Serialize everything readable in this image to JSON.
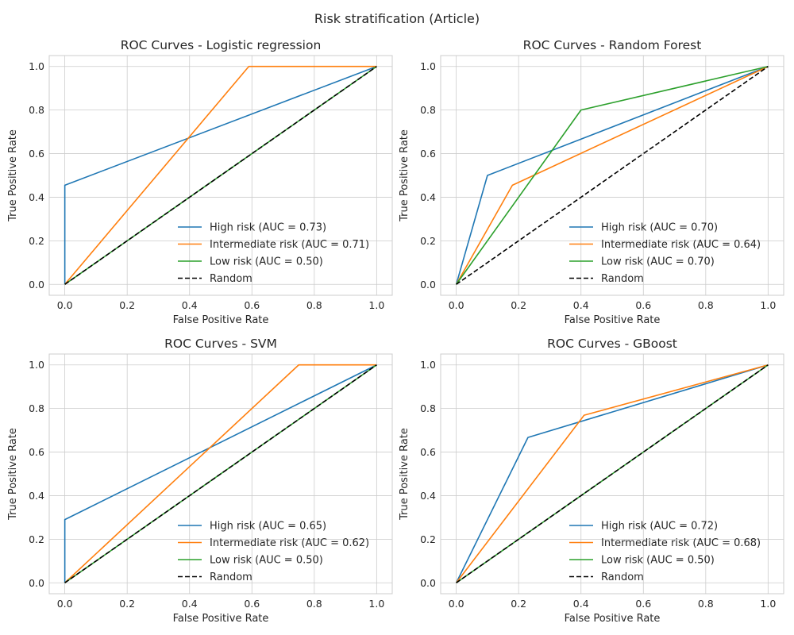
{
  "figure": {
    "suptitle": "Risk stratification (Article)"
  },
  "colors": {
    "high": "#1f77b4",
    "intermediate": "#ff7f0e",
    "low": "#2ca02c",
    "random": "#000000",
    "grid": "#cccccc"
  },
  "chart_data": [
    {
      "type": "line",
      "title": "ROC Curves - Logistic regression",
      "xlabel": "False Positive Rate",
      "ylabel": "True Positive Rate",
      "xlim": [
        -0.05,
        1.05
      ],
      "ylim": [
        -0.05,
        1.05
      ],
      "xticks": [
        "0.0",
        "0.2",
        "0.4",
        "0.6",
        "0.8",
        "1.0"
      ],
      "yticks": [
        "0.0",
        "0.2",
        "0.4",
        "0.6",
        "0.8",
        "1.0"
      ],
      "grid": true,
      "legend_position": "lower-right",
      "series": [
        {
          "name": "High risk (AUC = 0.73)",
          "color": "#1f77b4",
          "style": "solid",
          "x": [
            0,
            0,
            1
          ],
          "y": [
            0,
            0.455,
            1
          ]
        },
        {
          "name": "Intermediate risk (AUC = 0.71)",
          "color": "#ff7f0e",
          "style": "solid",
          "x": [
            0,
            0.59,
            1
          ],
          "y": [
            0,
            1,
            1
          ]
        },
        {
          "name": "Low risk (AUC = 0.50)",
          "color": "#2ca02c",
          "style": "solid",
          "x": [
            0,
            1
          ],
          "y": [
            0,
            1
          ]
        },
        {
          "name": "Random",
          "color": "#000000",
          "style": "dashed",
          "x": [
            0,
            1
          ],
          "y": [
            0,
            1
          ]
        }
      ]
    },
    {
      "type": "line",
      "title": "ROC Curves - Random Forest",
      "xlabel": "False Positive Rate",
      "ylabel": "True Positive Rate",
      "xlim": [
        -0.05,
        1.05
      ],
      "ylim": [
        -0.05,
        1.05
      ],
      "xticks": [
        "0.0",
        "0.2",
        "0.4",
        "0.6",
        "0.8",
        "1.0"
      ],
      "yticks": [
        "0.0",
        "0.2",
        "0.4",
        "0.6",
        "0.8",
        "1.0"
      ],
      "grid": true,
      "legend_position": "lower-right",
      "series": [
        {
          "name": "High risk (AUC = 0.70)",
          "color": "#1f77b4",
          "style": "solid",
          "x": [
            0,
            0.1,
            1
          ],
          "y": [
            0,
            0.5,
            1
          ]
        },
        {
          "name": "Intermediate risk (AUC = 0.64)",
          "color": "#ff7f0e",
          "style": "solid",
          "x": [
            0,
            0.18,
            1
          ],
          "y": [
            0,
            0.455,
            1
          ]
        },
        {
          "name": "Low risk (AUC = 0.70)",
          "color": "#2ca02c",
          "style": "solid",
          "x": [
            0,
            0.4,
            1
          ],
          "y": [
            0,
            0.8,
            1
          ]
        },
        {
          "name": "Random",
          "color": "#000000",
          "style": "dashed",
          "x": [
            0,
            1
          ],
          "y": [
            0,
            1
          ]
        }
      ]
    },
    {
      "type": "line",
      "title": "ROC Curves - SVM",
      "xlabel": "False Positive Rate",
      "ylabel": "True Positive Rate",
      "xlim": [
        -0.05,
        1.05
      ],
      "ylim": [
        -0.05,
        1.05
      ],
      "xticks": [
        "0.0",
        "0.2",
        "0.4",
        "0.6",
        "0.8",
        "1.0"
      ],
      "yticks": [
        "0.0",
        "0.2",
        "0.4",
        "0.6",
        "0.8",
        "1.0"
      ],
      "grid": true,
      "legend_position": "lower-right",
      "series": [
        {
          "name": "High risk (AUC = 0.65)",
          "color": "#1f77b4",
          "style": "solid",
          "x": [
            0,
            0,
            1
          ],
          "y": [
            0,
            0.29,
            1
          ]
        },
        {
          "name": "Intermediate risk (AUC = 0.62)",
          "color": "#ff7f0e",
          "style": "solid",
          "x": [
            0,
            0.75,
            1
          ],
          "y": [
            0,
            1,
            1
          ]
        },
        {
          "name": "Low risk (AUC = 0.50)",
          "color": "#2ca02c",
          "style": "solid",
          "x": [
            0,
            1
          ],
          "y": [
            0,
            1
          ]
        },
        {
          "name": "Random",
          "color": "#000000",
          "style": "dashed",
          "x": [
            0,
            1
          ],
          "y": [
            0,
            1
          ]
        }
      ]
    },
    {
      "type": "line",
      "title": "ROC Curves - GBoost",
      "xlabel": "False Positive Rate",
      "ylabel": "True Positive Rate",
      "xlim": [
        -0.05,
        1.05
      ],
      "ylim": [
        -0.05,
        1.05
      ],
      "xticks": [
        "0.0",
        "0.2",
        "0.4",
        "0.6",
        "0.8",
        "1.0"
      ],
      "yticks": [
        "0.0",
        "0.2",
        "0.4",
        "0.6",
        "0.8",
        "1.0"
      ],
      "grid": true,
      "legend_position": "lower-right",
      "series": [
        {
          "name": "High risk (AUC = 0.72)",
          "color": "#1f77b4",
          "style": "solid",
          "x": [
            0,
            0.23,
            1
          ],
          "y": [
            0,
            0.667,
            1
          ]
        },
        {
          "name": "Intermediate risk (AUC = 0.68)",
          "color": "#ff7f0e",
          "style": "solid",
          "x": [
            0,
            0.41,
            1
          ],
          "y": [
            0,
            0.769,
            1
          ]
        },
        {
          "name": "Low risk (AUC = 0.50)",
          "color": "#2ca02c",
          "style": "solid",
          "x": [
            0,
            1
          ],
          "y": [
            0,
            1
          ]
        },
        {
          "name": "Random",
          "color": "#000000",
          "style": "dashed",
          "x": [
            0,
            1
          ],
          "y": [
            0,
            1
          ]
        }
      ]
    }
  ]
}
